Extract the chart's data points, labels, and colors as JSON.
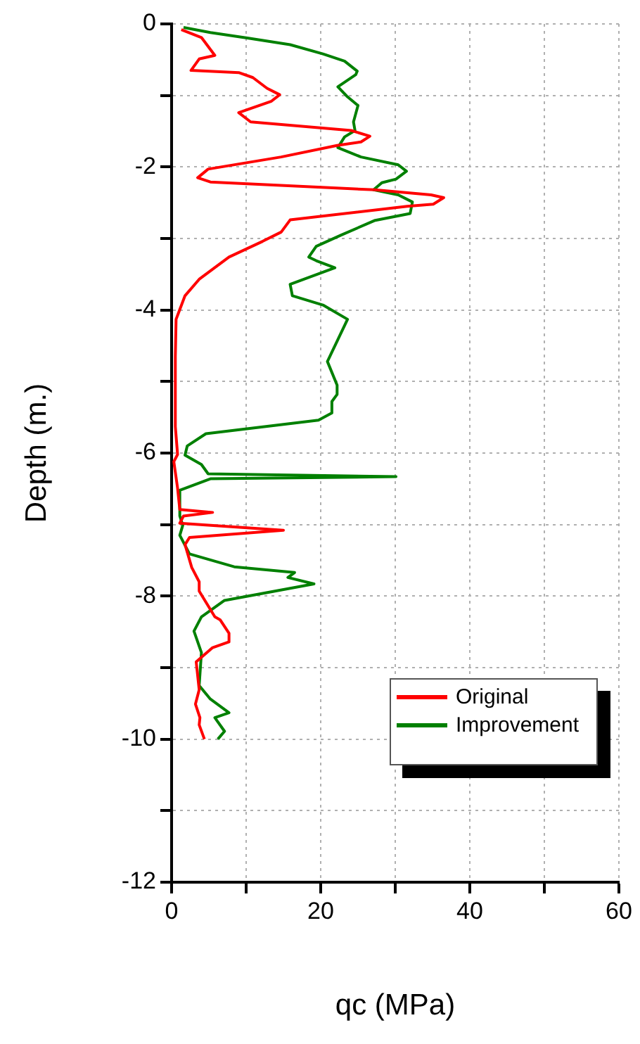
{
  "chart_data": {
    "type": "line",
    "xlabel": "qc (MPa)",
    "ylabel": "Depth (m.)",
    "xlim": [
      0,
      60
    ],
    "xticks": [
      0,
      {
        "value": 10,
        "label": null
      },
      20,
      {
        "value": 30,
        "label": null
      },
      40,
      {
        "value": 50,
        "label": null
      },
      60
    ],
    "ylim": [
      -12,
      0
    ],
    "yticks": [
      0,
      {
        "value": -1,
        "label": null
      },
      -2,
      {
        "value": -3,
        "label": null
      },
      -4,
      {
        "value": -5,
        "label": null
      },
      -6,
      {
        "value": -7,
        "label": null
      },
      -8,
      {
        "value": -9,
        "label": null
      },
      -10,
      {
        "value": -11,
        "label": null
      },
      -12
    ],
    "grid": true,
    "legend": "bottom right",
    "marker": "none",
    "line_style": "solid",
    "series": [
      {
        "name": "Original",
        "color": "#ff0000",
        "x": [
          1.3,
          4.0,
          5.8,
          3.7,
          2.6,
          9.0,
          10.9,
          12.8,
          14.5,
          13.4,
          9.0,
          10.6,
          24.1,
          26.6,
          25.4,
          22.2,
          14.7,
          4.9,
          3.5,
          5.2,
          27.2,
          34.8,
          36.5,
          35.1,
          31.6,
          15.9,
          14.7,
          12.2,
          7.7,
          3.7,
          1.8,
          0.6,
          0.5,
          0.5,
          0.8,
          0.3,
          0.8,
          1.1,
          5.5,
          1.6,
          1.1,
          15.0,
          2.4,
          1.8,
          2.7,
          3.7,
          3.7,
          5.8,
          6.5,
          7.7,
          7.7,
          5.5,
          3.3,
          3.7,
          3.2,
          3.8,
          3.7,
          4.4
        ],
        "values": [
          -0.08,
          -0.19,
          -0.44,
          -0.49,
          -0.65,
          -0.68,
          -0.75,
          -0.9,
          -0.99,
          -1.08,
          -1.24,
          -1.37,
          -1.49,
          -1.57,
          -1.65,
          -1.7,
          -1.86,
          -2.03,
          -2.15,
          -2.21,
          -2.32,
          -2.39,
          -2.43,
          -2.52,
          -2.55,
          -2.74,
          -2.91,
          -3.04,
          -3.26,
          -3.57,
          -3.8,
          -4.13,
          -4.65,
          -5.63,
          -6.02,
          -6.12,
          -6.49,
          -6.79,
          -6.83,
          -6.88,
          -6.98,
          -7.08,
          -7.18,
          -7.28,
          -7.6,
          -7.8,
          -7.93,
          -8.29,
          -8.33,
          -8.52,
          -8.64,
          -8.72,
          -8.92,
          -9.31,
          -9.51,
          -9.7,
          -9.8,
          -10.0
        ]
      },
      {
        "name": "Improvement",
        "color": "#008000",
        "x": [
          1.6,
          5.2,
          10.3,
          15.9,
          20.3,
          23.2,
          24.9,
          24.7,
          22.3,
          23.5,
          25.0,
          24.4,
          24.6,
          23.2,
          22.3,
          25.4,
          30.4,
          31.5,
          30.1,
          28.2,
          27.1,
          30.4,
          32.3,
          32.0,
          27.2,
          22.8,
          19.4,
          18.4,
          19.4,
          21.9,
          15.9,
          16.2,
          20.3,
          23.6,
          20.9,
          22.2,
          22.2,
          21.5,
          21.5,
          19.7,
          4.6,
          2.1,
          1.8,
          4.0,
          4.9,
          30.1,
          5.2,
          1.1,
          1.1,
          1.5,
          1.1,
          2.4,
          8.4,
          16.5,
          15.6,
          19.1,
          7.1,
          4.0,
          3.0,
          4.0,
          3.7,
          5.2,
          7.7,
          5.8,
          7.1,
          6.2
        ],
        "values": [
          -0.05,
          -0.12,
          -0.2,
          -0.29,
          -0.42,
          -0.52,
          -0.66,
          -0.71,
          -0.88,
          -1.01,
          -1.14,
          -1.37,
          -1.49,
          -1.58,
          -1.73,
          -1.86,
          -1.97,
          -2.06,
          -2.17,
          -2.22,
          -2.32,
          -2.39,
          -2.49,
          -2.65,
          -2.75,
          -2.95,
          -3.11,
          -3.26,
          -3.31,
          -3.41,
          -3.64,
          -3.8,
          -3.93,
          -4.13,
          -4.72,
          -5.05,
          -5.18,
          -5.28,
          -5.44,
          -5.54,
          -5.73,
          -5.9,
          -6.03,
          -6.16,
          -6.29,
          -6.33,
          -6.36,
          -6.52,
          -6.88,
          -7.01,
          -7.15,
          -7.41,
          -7.59,
          -7.67,
          -7.74,
          -7.83,
          -8.06,
          -8.29,
          -8.49,
          -8.79,
          -9.25,
          -9.44,
          -9.63,
          -9.7,
          -9.89,
          -10.0
        ]
      }
    ]
  }
}
